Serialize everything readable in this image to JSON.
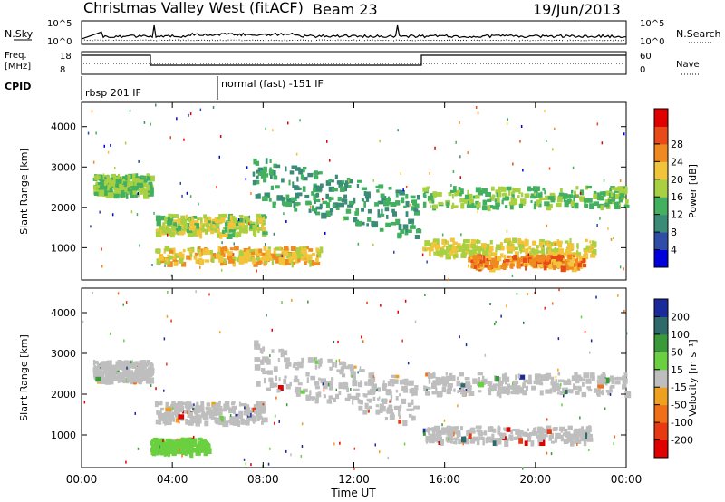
{
  "header": {
    "station": "Christmas Valley West (fitACF)",
    "beam": "Beam 23",
    "date": "19/Jun/2013"
  },
  "noise_panel": {
    "left_label": "N.Sky",
    "right_label": "N.Search",
    "left_ticks": [
      "10^5",
      "10^0"
    ],
    "right_ticks": [
      "10^5",
      "10^0"
    ]
  },
  "freq_panel": {
    "left_label_1": "Freq.",
    "left_label_2": "[MHz]",
    "right_label": "Nave",
    "left_ticks": [
      "18",
      "8"
    ],
    "right_ticks": [
      "60",
      "0"
    ]
  },
  "cpid": {
    "label": "CPID",
    "segments": [
      {
        "text": "rbsp 201 IF",
        "start_hour": 0
      },
      {
        "text": "normal (fast) -151 IF",
        "start_hour": 6
      }
    ]
  },
  "chart_data": [
    {
      "type": "heatmap",
      "name": "power",
      "ylabel": "Slant Range [km]",
      "xlabel": "",
      "x_ticks": [
        "00:00",
        "04:00",
        "08:00",
        "12:00",
        "16:00",
        "20:00",
        "00:00"
      ],
      "y_ticks": [
        1000,
        2000,
        3000,
        4000
      ],
      "ylim": [
        200,
        4600
      ],
      "xlim_hours": [
        0,
        24
      ],
      "colorbar": {
        "label": "Power [dB]",
        "ticks": [
          4,
          8,
          12,
          16,
          20,
          24,
          28
        ],
        "colors": [
          "#0000dc",
          "#2f4da8",
          "#3a8c78",
          "#43b060",
          "#a8d040",
          "#f2c43a",
          "#f08a20",
          "#e84a18",
          "#e00000"
        ]
      },
      "bands": [
        {
          "x": [
            0.5,
            3.0
          ],
          "y": [
            2300,
            2800
          ],
          "power": 14
        },
        {
          "x": [
            3.2,
            8.0
          ],
          "y": [
            1300,
            1800
          ],
          "power": 16
        },
        {
          "x": [
            3.2,
            10.5
          ],
          "y": [
            600,
            1000
          ],
          "power": 20
        },
        {
          "x": [
            7.5,
            14.8
          ],
          "y": [
            1700,
            2800
          ],
          "power": 10
        },
        {
          "x": [
            15.0,
            24.0
          ],
          "y": [
            2000,
            2500
          ],
          "power": 14
        },
        {
          "x": [
            15.0,
            22.5
          ],
          "y": [
            800,
            1200
          ],
          "power": 18
        },
        {
          "x": [
            17.0,
            22.0
          ],
          "y": [
            500,
            800
          ],
          "power": 24
        }
      ]
    },
    {
      "type": "heatmap",
      "name": "velocity",
      "ylabel": "Slant Range [km]",
      "xlabel": "Time UT",
      "x_ticks": [
        "00:00",
        "04:00",
        "08:00",
        "12:00",
        "16:00",
        "20:00",
        "00:00"
      ],
      "y_ticks": [
        1000,
        2000,
        3000,
        4000
      ],
      "ylim": [
        200,
        4600
      ],
      "xlim_hours": [
        0,
        24
      ],
      "colorbar": {
        "label": "Velocity [m s⁻¹]",
        "ticks": [
          200,
          100,
          50,
          15,
          -15,
          -50,
          -100,
          -200
        ],
        "colors": [
          "#1a2a9c",
          "#2f6a6a",
          "#3a9a3a",
          "#6ad040",
          "#bebebe",
          "#f0a020",
          "#f07018",
          "#e83a10",
          "#e00000"
        ]
      },
      "bands": [
        {
          "x": [
            0.5,
            3.0
          ],
          "y": [
            2300,
            2800
          ],
          "velocity": 0
        },
        {
          "x": [
            3.2,
            8.0
          ],
          "y": [
            1300,
            1800
          ],
          "velocity": 0
        },
        {
          "x": [
            3.0,
            5.5
          ],
          "y": [
            550,
            900
          ],
          "velocity": 40
        },
        {
          "x": [
            7.5,
            14.8
          ],
          "y": [
            1700,
            2800
          ],
          "velocity": 0
        },
        {
          "x": [
            15.0,
            24.0
          ],
          "y": [
            2000,
            2500
          ],
          "velocity": 0
        },
        {
          "x": [
            15.0,
            22.5
          ],
          "y": [
            800,
            1200
          ],
          "velocity": 0
        }
      ]
    }
  ]
}
